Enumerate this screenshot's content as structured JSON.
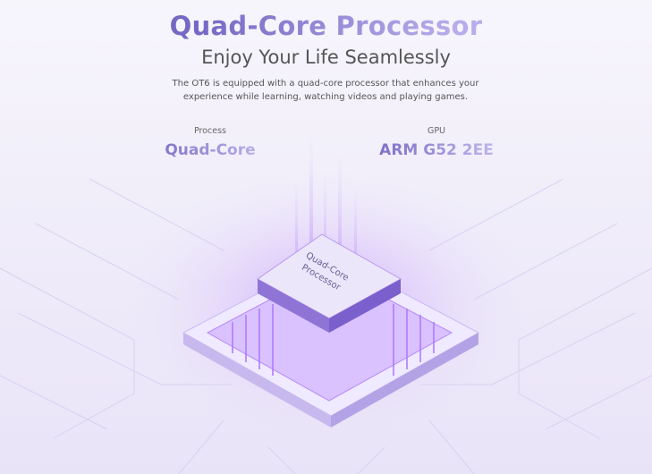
{
  "heading": {
    "title": "Quad-Core Processor",
    "subtitle": "Enjoy Your Life Seamlessly",
    "description": "The OT6 is equipped with a quad-core processor that enhances your experience while learning, watching videos and playing games."
  },
  "specs": [
    {
      "label": "Process",
      "value": "Quad-Core"
    },
    {
      "label": "GPU",
      "value": "ARM G52 2EE"
    }
  ],
  "chip": {
    "label": "Quad-Core Processor",
    "accent": "#a56cf0"
  },
  "colors": {
    "title_start": "#7568c4",
    "title_end": "#b8acea",
    "background": "#f1eefa"
  }
}
